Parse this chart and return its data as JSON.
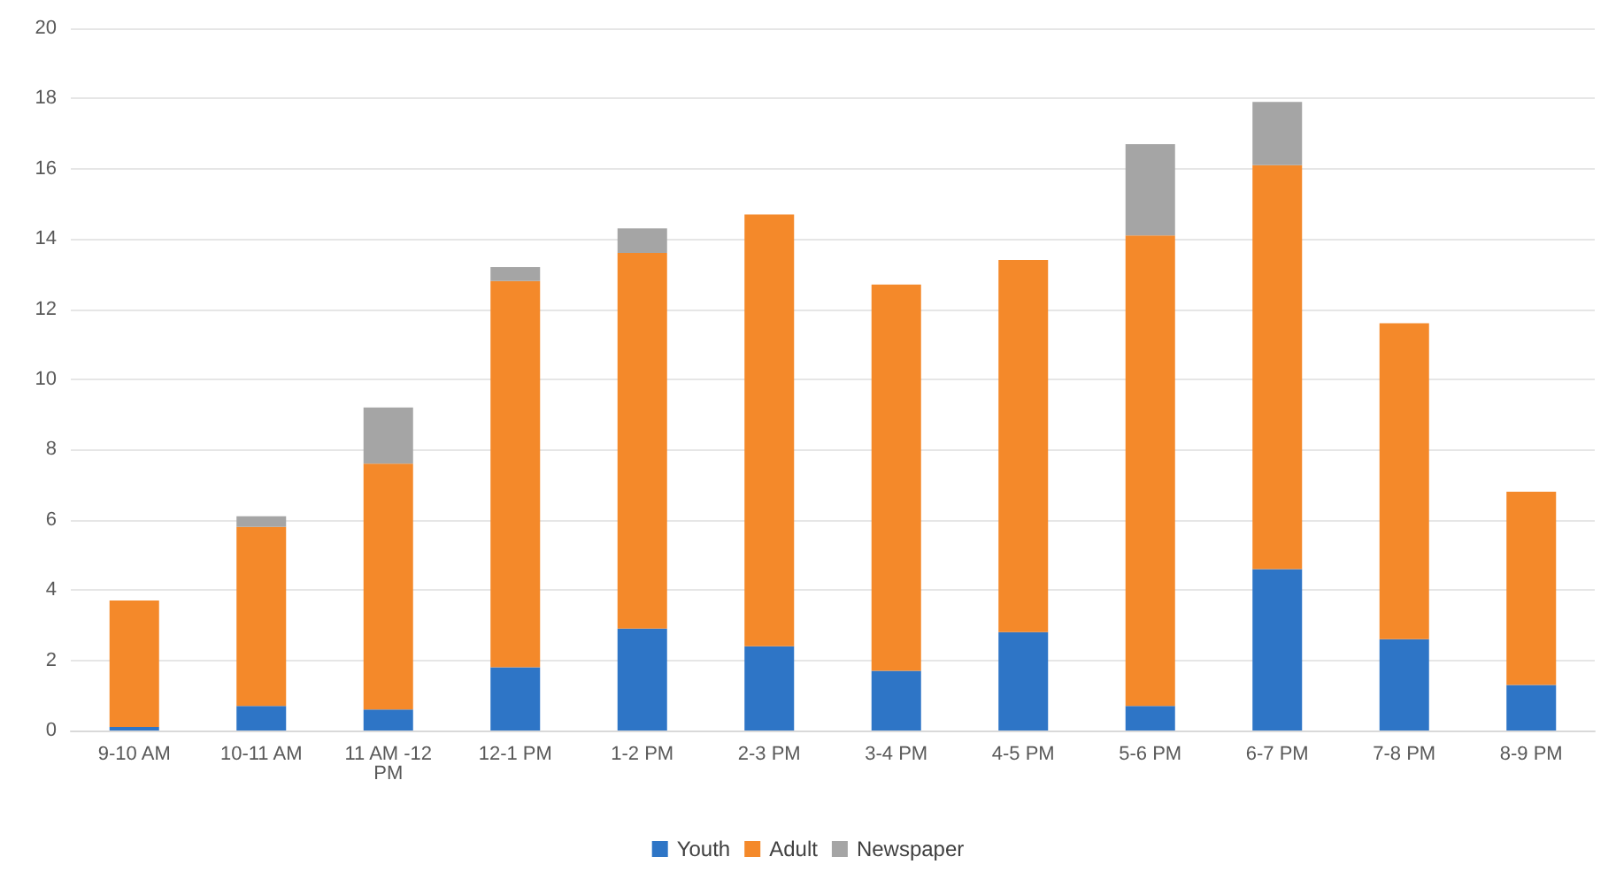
{
  "chart_data": {
    "type": "bar",
    "stacked": true,
    "categories": [
      "9-10 AM",
      "10-11 AM",
      "11 AM -12 PM",
      "12-1 PM",
      "1-2 PM",
      "2-3 PM",
      "3-4 PM",
      "4-5 PM",
      "5-6 PM",
      "6-7 PM",
      "7-8 PM",
      "8-9 PM"
    ],
    "series": [
      {
        "name": "Youth",
        "color": "#2e75c6",
        "values": [
          0.1,
          0.7,
          0.6,
          1.8,
          2.9,
          2.4,
          1.7,
          2.8,
          0.7,
          4.6,
          2.6,
          1.3
        ]
      },
      {
        "name": "Adult",
        "color": "#f4892a",
        "values": [
          3.6,
          5.1,
          7.0,
          11.0,
          10.7,
          12.3,
          11.0,
          10.6,
          13.4,
          11.5,
          9.0,
          5.5
        ]
      },
      {
        "name": "Newspaper",
        "color": "#a5a5a5",
        "values": [
          null,
          0.3,
          1.6,
          0.4,
          0.7,
          null,
          null,
          null,
          2.6,
          1.8,
          null,
          null
        ]
      }
    ],
    "ylim": [
      0,
      20
    ],
    "yticks": [
      0,
      2,
      4,
      6,
      8,
      10,
      12,
      14,
      16,
      18,
      20
    ],
    "grid": "y",
    "legend": "bottom"
  }
}
